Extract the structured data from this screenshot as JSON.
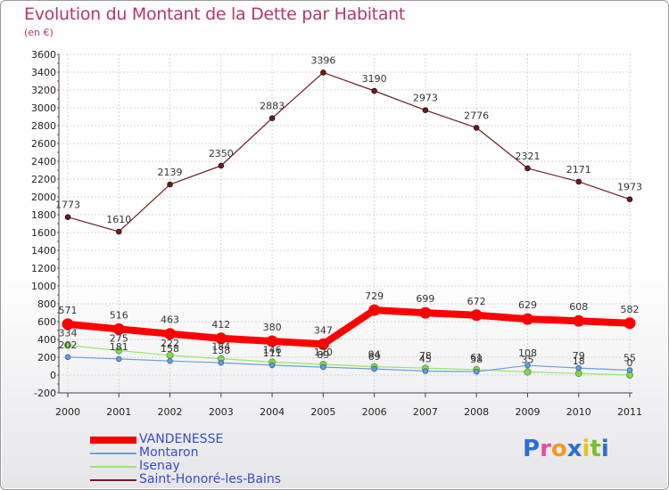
{
  "title": "Evolution du Montant de la Dette par Habitant",
  "subtitle": "(en €)",
  "logo": {
    "text": "Proxiti",
    "colors": [
      "#2b6fd6",
      "#e84c9a",
      "#f39a1e",
      "#2b6fd6",
      "#e8c21e",
      "#7abf2a",
      "#2b6fd6"
    ]
  },
  "chart_data": {
    "type": "line",
    "title": "Evolution du Montant de la Dette par Habitant",
    "subtitle": "(en €)",
    "xlabel": "",
    "ylabel": "",
    "x": [
      "2000",
      "2001",
      "2002",
      "2003",
      "2004",
      "2005",
      "2006",
      "2007",
      "2008",
      "2009",
      "2010",
      "2011"
    ],
    "ylim": [
      -200,
      3600
    ],
    "yticks": [
      "-200",
      "0",
      "200",
      "400",
      "600",
      "800",
      "1000",
      "1200",
      "1400",
      "1600",
      "1800",
      "2000",
      "2200",
      "2400",
      "2600",
      "2800",
      "3000",
      "3200",
      "3400",
      "3600"
    ],
    "grid": true,
    "legend_position": "bottom-left",
    "series": [
      {
        "name": "VANDENESSE",
        "color": "#ff0000",
        "values": [
          571,
          516,
          463,
          412,
          380,
          347,
          729,
          699,
          672,
          629,
          608,
          582
        ]
      },
      {
        "name": "Montaron",
        "color": "#6b9fd4",
        "values": [
          202,
          181,
          158,
          138,
          111,
          89,
          69,
          45,
          38,
          108,
          79,
          55
        ]
      },
      {
        "name": "Isenay",
        "color": "#9be36f",
        "values": [
          334,
          275,
          222,
          184,
          146,
          120,
          94,
          78,
          61,
          35,
          18,
          0
        ]
      },
      {
        "name": "Saint-Honoré-les-Bains",
        "color": "#6a1e24",
        "values": [
          1773,
          1610,
          2139,
          2350,
          2883,
          3396,
          3190,
          2973,
          2776,
          2321,
          2171,
          1973
        ]
      }
    ]
  }
}
